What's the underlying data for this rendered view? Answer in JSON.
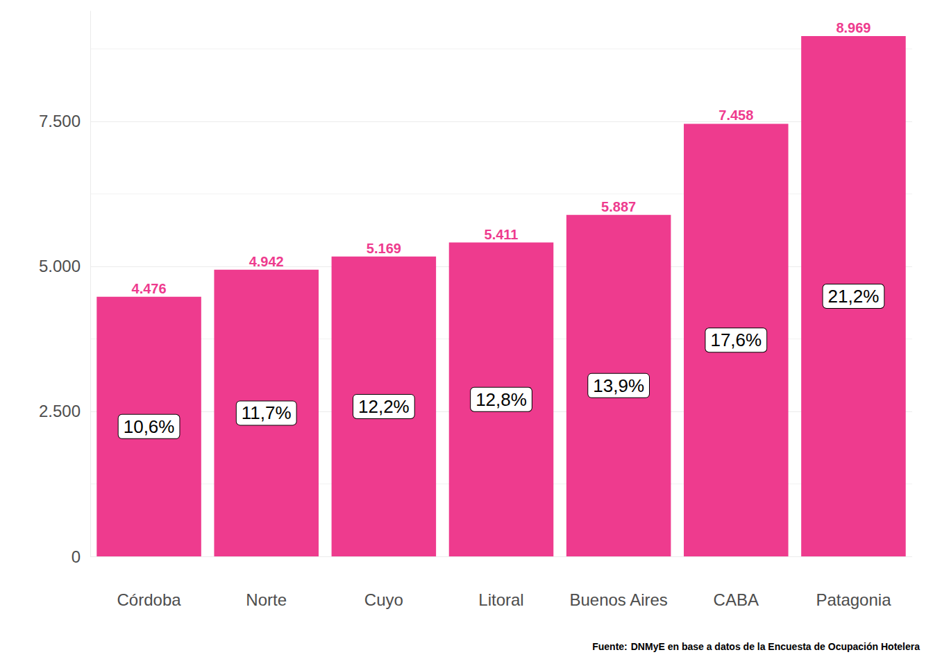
{
  "chart_data": {
    "type": "bar",
    "categories": [
      "Córdoba",
      "Norte",
      "Cuyo",
      "Litoral",
      "Buenos Aires",
      "CABA",
      "Patagonia"
    ],
    "values": [
      4476,
      4942,
      5169,
      5411,
      5887,
      7458,
      8969
    ],
    "value_labels": [
      "4.476",
      "4.942",
      "5.169",
      "5.411",
      "5.887",
      "7.458",
      "8.969"
    ],
    "shares": [
      10.6,
      11.7,
      12.2,
      12.8,
      13.9,
      17.6,
      21.2
    ],
    "share_labels": [
      "10,6%",
      "11,7%",
      "12,2%",
      "12,8%",
      "13,9%",
      "17,6%",
      "21,2%"
    ],
    "color": "#ee3b8e",
    "ylim": [
      0,
      9400
    ],
    "yticks": [
      0,
      {
        "value": 2500,
        "label": "2.500"
      },
      {
        "value": 5000,
        "label": "5.000"
      },
      {
        "value": 7500,
        "label": "7.500"
      }
    ],
    "grid": true,
    "data_labels": true,
    "caption_label": "Fuente:",
    "caption": "DNMyE en base a datos de la Encuesta de Ocupación Hotelera"
  }
}
